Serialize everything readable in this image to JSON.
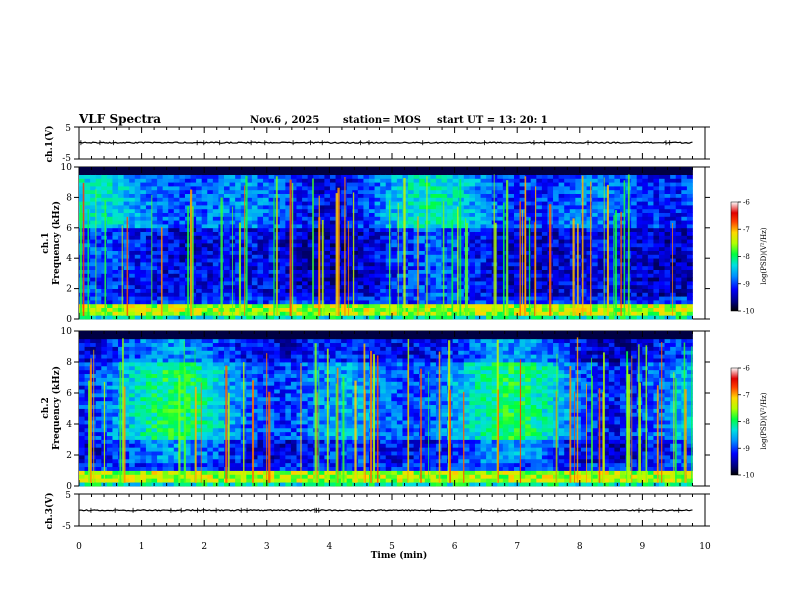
{
  "header": {
    "title": "VLF Spectra",
    "date": "Nov.6 , 2025",
    "station": "station= MOS",
    "start": "start UT = 13: 20: 1"
  },
  "chart_data": [
    {
      "type": "line",
      "panel": "waveform-ch1",
      "ylabel": "ch.1(V)",
      "ylim": [
        -5,
        5
      ],
      "yticks": [
        "5",
        "-5"
      ],
      "xlim": [
        0,
        10
      ],
      "baseline": 0.1
    },
    {
      "type": "heatmap",
      "panel": "spectrogram-ch1",
      "ylabel_lines": [
        "ch.1",
        "Frequency (kHz)"
      ],
      "ylim": [
        0,
        10
      ],
      "yticks": [
        "0",
        "2",
        "4",
        "6",
        "8",
        "10"
      ],
      "xlim": [
        0,
        9.8
      ],
      "colorbar": {
        "label": "log(PSD)(V²/Hz)",
        "range": [
          -10,
          -6
        ],
        "ticks": [
          "-6",
          "-7",
          "-8",
          "-9",
          "-10"
        ]
      }
    },
    {
      "type": "heatmap",
      "panel": "spectrogram-ch2",
      "ylabel_lines": [
        "ch.2",
        "Frequency (kHz)"
      ],
      "ylim": [
        0,
        10
      ],
      "yticks": [
        "0",
        "2",
        "4",
        "6",
        "8",
        "10"
      ],
      "xlim": [
        0,
        9.8
      ],
      "colorbar": {
        "label": "log(PSD)(V²/Hz)",
        "range": [
          -10,
          -6
        ],
        "ticks": [
          "-6",
          "-7",
          "-8",
          "-9",
          "-10"
        ]
      }
    },
    {
      "type": "line",
      "panel": "waveform-ch3",
      "ylabel": "ch.3(V)",
      "ylim": [
        -5,
        5
      ],
      "yticks": [
        "5",
        "-5"
      ],
      "xlim": [
        0,
        10
      ],
      "baseline": -0.1
    }
  ],
  "xaxis": {
    "label": "Time (min)",
    "ticks": [
      "0",
      "1",
      "2",
      "3",
      "4",
      "5",
      "6",
      "7",
      "8",
      "9",
      "10"
    ]
  }
}
